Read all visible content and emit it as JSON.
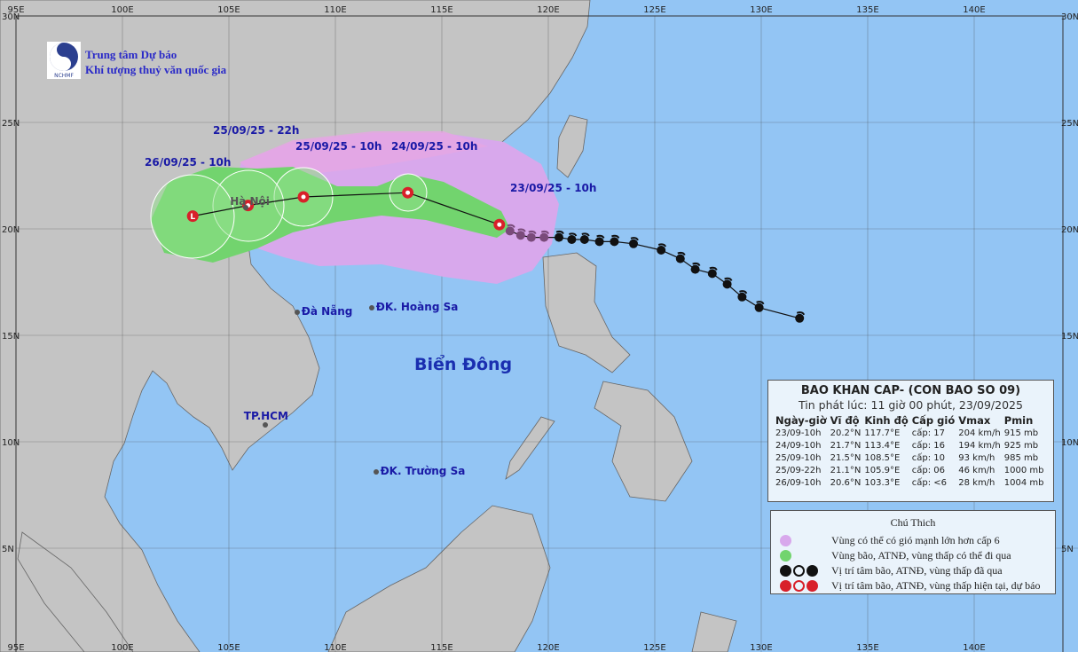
{
  "organization": {
    "line1": "Trung tâm Dự báo",
    "line2": "Khí tượng thuỷ văn quốc gia",
    "logo_text": "NCHMF"
  },
  "axes": {
    "lon_ticks": [
      "95E",
      "100E",
      "105E",
      "110E",
      "115E",
      "120E",
      "125E",
      "130E",
      "135E",
      "140E"
    ],
    "lat_ticks": [
      "30N",
      "25N",
      "20N",
      "15N",
      "10N",
      "5N"
    ]
  },
  "colors": {
    "ocean": "#93c5f4",
    "land": "#c4c4c4",
    "wind_zone": "#d8a8ec",
    "storm_zone": "#72d46e",
    "current_icon": "#d8202a",
    "past_icon": "#111111"
  },
  "storm_track": {
    "forecast": [
      {
        "label": "23/09/25 - 10h",
        "lat": 20.2,
        "lon": 117.7,
        "icon": "typhoon"
      },
      {
        "label": "24/09/25 - 10h",
        "lat": 21.7,
        "lon": 113.4,
        "icon": "typhoon"
      },
      {
        "label": "25/09/25 - 10h",
        "lat": 21.5,
        "lon": 108.5,
        "icon": "typhoon"
      },
      {
        "label": "25/09/25 - 22h",
        "lat": 21.1,
        "lon": 105.9,
        "icon": "depression"
      },
      {
        "label": "26/09/25 - 10h",
        "lat": 20.6,
        "lon": 103.3,
        "icon": "low"
      }
    ],
    "past": [
      [
        19.9,
        118.2
      ],
      [
        19.7,
        118.7
      ],
      [
        19.6,
        119.2
      ],
      [
        19.6,
        119.8
      ],
      [
        19.6,
        120.5
      ],
      [
        19.5,
        121.1
      ],
      [
        19.5,
        121.7
      ],
      [
        19.4,
        122.4
      ],
      [
        19.4,
        123.1
      ],
      [
        19.3,
        124.0
      ],
      [
        19.0,
        125.3
      ],
      [
        18.6,
        126.2
      ],
      [
        18.1,
        126.9
      ],
      [
        17.9,
        127.7
      ],
      [
        17.4,
        128.4
      ],
      [
        16.8,
        129.1
      ],
      [
        16.3,
        129.9
      ],
      [
        15.8,
        131.8
      ]
    ]
  },
  "places": [
    {
      "name": "Hà Nội",
      "lat": 21.0,
      "lon": 105.8
    },
    {
      "name": "Đà Nẵng",
      "lat": 16.1,
      "lon": 108.2
    },
    {
      "name": "ĐK. Hoàng Sa",
      "lat": 16.3,
      "lon": 111.7
    },
    {
      "name": "TP.HCM",
      "lat": 10.8,
      "lon": 106.7
    },
    {
      "name": "ĐK. Trường Sa",
      "lat": 8.6,
      "lon": 111.9
    }
  ],
  "sea_label": "Biển Đông",
  "bulletin": {
    "title": "BAO KHAN CAP- (CON BAO SO 09)",
    "issued": "Tin phát lúc: 11 giờ 00 phút, 23/09/2025",
    "columns": [
      "Ngày-giờ",
      "Vĩ độ",
      "Kinh độ",
      "Cấp gió",
      "Vmax",
      "Pmin"
    ],
    "rows": [
      [
        "23/09-10h",
        "20.2°N",
        "117.7°E",
        "cấp: 17",
        "204 km/h",
        "915 mb"
      ],
      [
        "24/09-10h",
        "21.7°N",
        "113.4°E",
        "cấp: 16",
        "194 km/h",
        "925 mb"
      ],
      [
        "25/09-10h",
        "21.5°N",
        "108.5°E",
        "cấp: 10",
        "93 km/h",
        "985 mb"
      ],
      [
        "25/09-22h",
        "21.1°N",
        "105.9°E",
        "cấp: 06",
        "46 km/h",
        "1000 mb"
      ],
      [
        "26/09-10h",
        "20.6°N",
        "103.3°E",
        "cấp: <6",
        "28 km/h",
        "1004 mb"
      ]
    ]
  },
  "legend": {
    "title": "Chú Thich",
    "items": [
      {
        "text": "Vùng có thể có gió mạnh lớn hơn cấp 6",
        "icon": "pink-dot"
      },
      {
        "text": "Vùng bão, ATNĐ, vùng thấp có thể đi qua",
        "icon": "green-dot"
      },
      {
        "text": "Vị trí tâm bão, ATNĐ, vùng thấp đã qua",
        "icon": "black-storm-symbols"
      },
      {
        "text": "Vị trí tâm bão, ATNĐ, vùng thấp hiện tại, dự báo",
        "icon": "red-storm-symbols"
      }
    ]
  }
}
